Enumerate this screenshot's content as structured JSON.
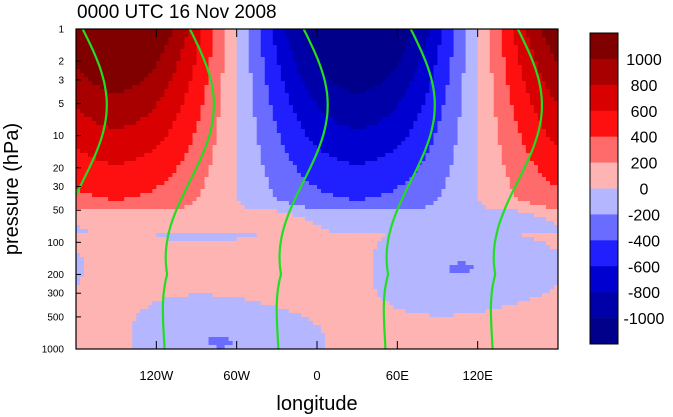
{
  "chart_data": {
    "type": "heatmap",
    "title": "0000 UTC 16 Nov 2008",
    "xlabel": "longitude",
    "ylabel": "pressure (hPa)",
    "x_range": [
      -180,
      180
    ],
    "y_range_hpa": [
      1000,
      1
    ],
    "y_scale": "log",
    "x_ticks": [
      {
        "value": -120,
        "label": "120W"
      },
      {
        "value": -60,
        "label": "60W"
      },
      {
        "value": 0,
        "label": "0"
      },
      {
        "value": 60,
        "label": "60E"
      },
      {
        "value": 120,
        "label": "120E"
      }
    ],
    "y_ticks": [
      {
        "value": 1,
        "label": "1"
      },
      {
        "value": 2,
        "label": "2"
      },
      {
        "value": 3,
        "label": "3"
      },
      {
        "value": 5,
        "label": "5"
      },
      {
        "value": 10,
        "label": "10"
      },
      {
        "value": 20,
        "label": "20"
      },
      {
        "value": 30,
        "label": "30"
      },
      {
        "value": 50,
        "label": "50"
      },
      {
        "value": 100,
        "label": "100"
      },
      {
        "value": 200,
        "label": "200"
      },
      {
        "value": 300,
        "label": "300"
      },
      {
        "value": 500,
        "label": "500"
      },
      {
        "value": 1000,
        "label": "1000"
      }
    ],
    "colorbar": {
      "levels": [
        1000,
        800,
        600,
        400,
        200,
        0,
        -200,
        -400,
        -600,
        -800,
        -1000
      ],
      "labels": [
        "1000",
        "800",
        "600",
        "400",
        "200",
        "0",
        "-200",
        "-400",
        "-600",
        "-800",
        "-1000"
      ],
      "colors": [
        "#800000",
        "#a80000",
        "#d80000",
        "#ff1010",
        "#ff6a6a",
        "#ffb4b4",
        "#b4b6ff",
        "#6a6cff",
        "#2020ff",
        "#0000d0",
        "#0000a8",
        "#00008a"
      ]
    },
    "field": {
      "description_free": true,
      "waves": [
        {
          "center_lon": -150,
          "peak": 1150,
          "sign": 1
        },
        {
          "center_lon": 30,
          "peak": -1150,
          "sign": -1
        },
        {
          "center_lon": 180,
          "peak": 1000,
          "sign": 1
        }
      ]
    },
    "overlay_line_color": "#22dd22",
    "overlay_lines": 5
  }
}
